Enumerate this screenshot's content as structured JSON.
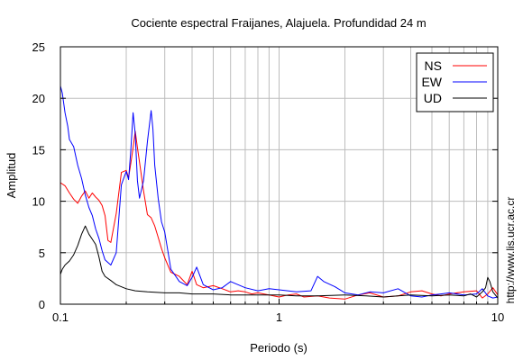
{
  "chart_data": {
    "type": "line",
    "title": "Cociente espectral Fraijanes, Alajuela. Profundidad 24 m",
    "xlabel": "Periodo (s)",
    "ylabel": "Amplitud",
    "xscale": "log",
    "xlim": [
      0.1,
      10
    ],
    "ylim": [
      0,
      25
    ],
    "xticks": [
      {
        "value": 0.1,
        "label": "0.1"
      },
      {
        "value": 1,
        "label": "1"
      },
      {
        "value": 10,
        "label": "10"
      }
    ],
    "yticks": [
      {
        "value": 0,
        "label": "0"
      },
      {
        "value": 5,
        "label": "5"
      },
      {
        "value": 10,
        "label": "10"
      },
      {
        "value": 15,
        "label": "15"
      },
      {
        "value": 20,
        "label": "20"
      },
      {
        "value": 25,
        "label": "25"
      }
    ],
    "grid": true,
    "legend_position": "top-right",
    "series": [
      {
        "name": "NS",
        "color": "#ff0000",
        "x": [
          0.1,
          0.105,
          0.11,
          0.115,
          0.12,
          0.125,
          0.13,
          0.135,
          0.14,
          0.145,
          0.15,
          0.155,
          0.16,
          0.165,
          0.17,
          0.18,
          0.19,
          0.2,
          0.205,
          0.21,
          0.215,
          0.22,
          0.225,
          0.23,
          0.24,
          0.25,
          0.26,
          0.27,
          0.28,
          0.29,
          0.3,
          0.32,
          0.35,
          0.38,
          0.4,
          0.42,
          0.45,
          0.5,
          0.55,
          0.6,
          0.65,
          0.7,
          0.75,
          0.8,
          0.9,
          1.0,
          1.1,
          1.2,
          1.3,
          1.5,
          1.7,
          2.0,
          2.3,
          2.6,
          3.0,
          3.5,
          4.0,
          4.5,
          5.0,
          5.5,
          6.0,
          7.0,
          8.0,
          8.5,
          9.0,
          9.5,
          10.0
        ],
        "values": [
          11.8,
          11.5,
          10.8,
          10.2,
          9.8,
          10.5,
          11.0,
          10.3,
          10.8,
          10.4,
          10.1,
          9.6,
          8.6,
          6.2,
          6.0,
          8.8,
          12.8,
          13.0,
          12.3,
          13.7,
          15.2,
          16.8,
          15.2,
          13.8,
          11.0,
          8.7,
          8.4,
          7.6,
          6.5,
          5.4,
          4.5,
          3.1,
          2.7,
          1.9,
          3.2,
          1.9,
          1.6,
          1.8,
          1.5,
          1.2,
          1.3,
          1.2,
          1.0,
          1.1,
          0.9,
          0.7,
          0.9,
          1.0,
          0.7,
          0.8,
          0.6,
          0.5,
          0.9,
          1.1,
          0.7,
          0.8,
          1.2,
          1.3,
          1.0,
          0.8,
          1.0,
          1.2,
          1.3,
          0.6,
          1.0,
          1.6,
          0.9
        ]
      },
      {
        "name": "EW",
        "color": "#0000ff",
        "x": [
          0.1,
          0.102,
          0.105,
          0.108,
          0.11,
          0.115,
          0.12,
          0.125,
          0.13,
          0.135,
          0.14,
          0.145,
          0.15,
          0.155,
          0.16,
          0.17,
          0.18,
          0.19,
          0.2,
          0.205,
          0.21,
          0.215,
          0.22,
          0.225,
          0.23,
          0.24,
          0.25,
          0.26,
          0.265,
          0.27,
          0.28,
          0.29,
          0.3,
          0.32,
          0.35,
          0.38,
          0.4,
          0.42,
          0.45,
          0.5,
          0.55,
          0.6,
          0.7,
          0.8,
          0.9,
          1.0,
          1.2,
          1.4,
          1.5,
          1.6,
          1.8,
          2.0,
          2.3,
          2.6,
          3.0,
          3.5,
          4.0,
          4.5,
          5.0,
          5.5,
          6.0,
          7.0,
          8.0,
          8.5,
          9.0,
          9.5,
          10.0
        ],
        "values": [
          21.2,
          20.5,
          18.6,
          17.3,
          16.0,
          15.3,
          13.5,
          12.2,
          10.6,
          9.4,
          8.6,
          7.3,
          6.4,
          5.2,
          4.3,
          3.8,
          5.0,
          11.6,
          12.9,
          12.1,
          15.0,
          18.6,
          16.5,
          12.0,
          10.3,
          12.0,
          15.8,
          18.8,
          17.0,
          13.5,
          10.3,
          8.0,
          7.0,
          3.4,
          2.2,
          1.8,
          2.6,
          3.6,
          1.9,
          1.4,
          1.6,
          2.2,
          1.6,
          1.3,
          1.5,
          1.4,
          1.2,
          1.3,
          2.7,
          2.2,
          1.7,
          1.1,
          0.9,
          1.2,
          1.1,
          1.5,
          0.8,
          0.7,
          0.9,
          1.0,
          1.1,
          0.9,
          1.0,
          1.5,
          0.8,
          0.6,
          0.7
        ]
      },
      {
        "name": "UD",
        "color": "#000000",
        "x": [
          0.1,
          0.102,
          0.105,
          0.11,
          0.115,
          0.12,
          0.125,
          0.13,
          0.135,
          0.14,
          0.145,
          0.15,
          0.155,
          0.16,
          0.17,
          0.18,
          0.2,
          0.22,
          0.25,
          0.3,
          0.35,
          0.4,
          0.5,
          0.6,
          0.8,
          1.0,
          1.2,
          1.5,
          2.0,
          2.5,
          3.0,
          3.5,
          4.0,
          5.0,
          6.0,
          7.0,
          7.5,
          8.0,
          8.5,
          8.8,
          9.0,
          9.2,
          9.5,
          10.0
        ],
        "values": [
          2.9,
          3.4,
          3.8,
          4.2,
          4.8,
          5.7,
          6.8,
          7.6,
          6.8,
          6.3,
          5.8,
          4.6,
          3.2,
          2.7,
          2.3,
          1.9,
          1.5,
          1.3,
          1.2,
          1.1,
          1.1,
          1.0,
          1.0,
          0.9,
          0.9,
          0.9,
          0.8,
          0.8,
          0.9,
          0.8,
          0.7,
          0.8,
          0.9,
          0.8,
          0.9,
          0.8,
          1.0,
          0.7,
          1.2,
          1.6,
          2.6,
          2.2,
          1.2,
          0.6
        ]
      }
    ]
  },
  "side_text": "http://www.lis.ucr.ac.cr"
}
